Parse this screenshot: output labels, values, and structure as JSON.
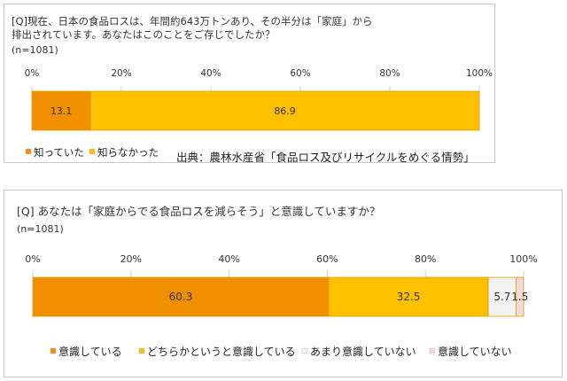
{
  "colors": {
    "known": "#f28f00",
    "not_known": "#ffc000",
    "conscious": "#f28f00",
    "somewhat_conscious": "#ffc000",
    "not_very_conscious": "#f2f2f2",
    "not_conscious": "#f2dcdb",
    "bar_border": "#d9a000",
    "grid": "#d0d0d0"
  },
  "panel1": {
    "question": "[Q]現在、日本の食品ロスは、年間約643万トンあり、その半分は「家庭」から\n排出されています。あなたはこのことをご存じでしたか？",
    "n": "(n=1081)",
    "source": "出典：農林水産省「食品ロス及びリサイクルをめぐる情勢」"
  },
  "panel2": {
    "question": "[Q] あなたは「家庭からでる食品ロスを減らそう」と意識していますか？",
    "n": "(n=1081)"
  },
  "chart_data": [
    {
      "type": "bar",
      "orientation": "horizontal-stacked",
      "xlim": [
        0,
        100
      ],
      "ticks": [
        "0%",
        "20%",
        "40%",
        "60%",
        "80%",
        "100%"
      ],
      "categories": [
        ""
      ],
      "series": [
        {
          "name": "知っていた",
          "values": [
            13.1
          ],
          "color": "#f28f00"
        },
        {
          "name": "知らなかった",
          "values": [
            86.9
          ],
          "color": "#ffc000"
        }
      ],
      "data_labels": [
        "13.1",
        "86.9"
      ],
      "legend": "bottom-left"
    },
    {
      "type": "bar",
      "orientation": "horizontal-stacked",
      "xlim": [
        0,
        100
      ],
      "ticks": [
        "0%",
        "20%",
        "40%",
        "60%",
        "80%",
        "100%"
      ],
      "categories": [
        ""
      ],
      "series": [
        {
          "name": "意識している",
          "values": [
            60.3
          ],
          "color": "#f28f00"
        },
        {
          "name": "どちらかというと意識している",
          "values": [
            32.5
          ],
          "color": "#ffc000"
        },
        {
          "name": "あまり意識していない",
          "values": [
            5.7
          ],
          "color": "#f2f2f2"
        },
        {
          "name": "意識していない",
          "values": [
            1.5
          ],
          "color": "#f2dcdb"
        }
      ],
      "data_labels": [
        "60.3",
        "32.5",
        "5.7",
        "1.5"
      ],
      "legend": "bottom"
    }
  ]
}
